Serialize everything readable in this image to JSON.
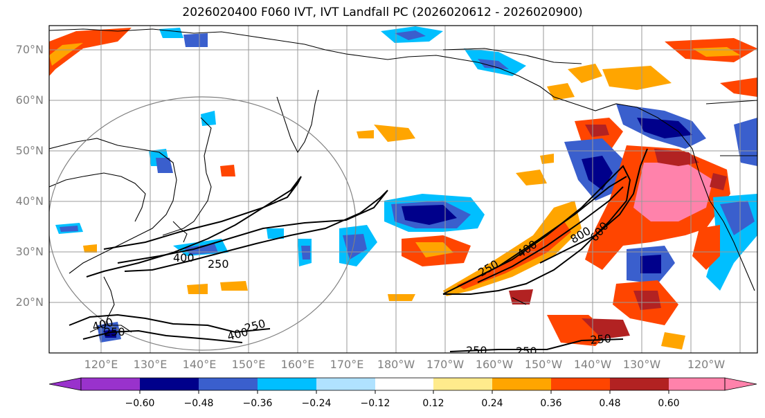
{
  "title": "2026020400 F060 IVT, IVT Landfall PC (2026020612 - 2026020900)",
  "lat_labels": [
    "70°N",
    "60°N",
    "50°N",
    "40°N",
    "30°N",
    "20°N"
  ],
  "lon_labels": [
    "120°E",
    "130°E",
    "140°E",
    "150°E",
    "160°E",
    "170°E",
    "180°W",
    "170°W",
    "160°W",
    "150°W",
    "140°W",
    "130°W",
    "120°W"
  ],
  "contour_labels": [
    "250",
    "400",
    "250",
    "400",
    "250",
    "400",
    "800",
    "600",
    "400",
    "250",
    "250",
    "250",
    "250"
  ],
  "colorbar": {
    "ticks": [
      "−0.60",
      "−0.48",
      "−0.36",
      "−0.24",
      "−0.12",
      "0.12",
      "0.24",
      "0.36",
      "0.48",
      "0.60"
    ],
    "colors": [
      "#9932cc",
      "#00008b",
      "#3a5fcd",
      "#00bfff",
      "#b0e2ff",
      "#ffffff",
      "#ffeb8c",
      "#ffa500",
      "#ff4500",
      "#b22222",
      "#ff82ab"
    ]
  }
}
